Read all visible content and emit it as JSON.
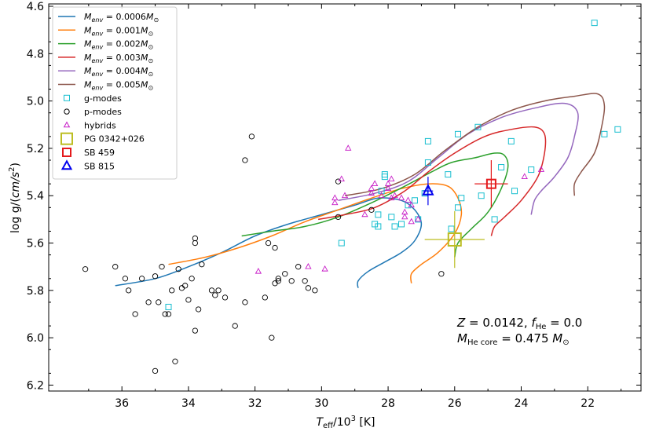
{
  "chart_data": {
    "type": "line+scatter",
    "xlabel": "T_eff/10^3 [K]",
    "ylabel": "log g/(cm/s^2)",
    "xlim": [
      38.2,
      20.4
    ],
    "ylim": [
      6.225,
      4.59
    ],
    "x_inverted": true,
    "y_inverted": true,
    "xticks": [
      36,
      34,
      32,
      30,
      28,
      26,
      24,
      22
    ],
    "yticks": [
      4.6,
      4.8,
      5.0,
      5.2,
      5.4,
      5.6,
      5.8,
      6.0,
      6.2
    ],
    "xtick_labels": [
      "36",
      "34",
      "32",
      "30",
      "28",
      "26",
      "24",
      "22"
    ],
    "ytick_labels": [
      "4.6",
      "4.8",
      "5.0",
      "5.2",
      "5.4",
      "5.6",
      "5.8",
      "6.0",
      "6.2"
    ],
    "legend_position": "top-left",
    "tracks": [
      {
        "label": "M_env = 0.0006 M_sun",
        "color": "#1f77b4",
        "points": [
          [
            36.2,
            5.78
          ],
          [
            35,
            5.75
          ],
          [
            34,
            5.7
          ],
          [
            33,
            5.64
          ],
          [
            32,
            5.57
          ],
          [
            31,
            5.52
          ],
          [
            30,
            5.48
          ],
          [
            29,
            5.44
          ],
          [
            28.3,
            5.41
          ],
          [
            27.6,
            5.42
          ],
          [
            27.2,
            5.46
          ],
          [
            27,
            5.52
          ],
          [
            27.2,
            5.59
          ],
          [
            27.6,
            5.64
          ],
          [
            28.1,
            5.68
          ],
          [
            28.6,
            5.72
          ],
          [
            28.9,
            5.76
          ],
          [
            28.9,
            5.79
          ]
        ]
      },
      {
        "label": "M_env = 0.001 M_sun",
        "color": "#ff7f0e",
        "points": [
          [
            34.6,
            5.69
          ],
          [
            33.5,
            5.66
          ],
          [
            32.5,
            5.62
          ],
          [
            31.5,
            5.57
          ],
          [
            30.5,
            5.51
          ],
          [
            29.5,
            5.46
          ],
          [
            28.5,
            5.41
          ],
          [
            27.6,
            5.37
          ],
          [
            26.8,
            5.35
          ],
          [
            26.2,
            5.36
          ],
          [
            25.9,
            5.41
          ],
          [
            25.8,
            5.48
          ],
          [
            26,
            5.56
          ],
          [
            26.5,
            5.64
          ],
          [
            27,
            5.69
          ],
          [
            27.3,
            5.73
          ],
          [
            27.3,
            5.77
          ]
        ]
      },
      {
        "label": "M_env = 0.002 M_sun",
        "color": "#2ca02c",
        "points": [
          [
            32.4,
            5.57
          ],
          [
            31.5,
            5.55
          ],
          [
            30.5,
            5.53
          ],
          [
            29.5,
            5.49
          ],
          [
            28.5,
            5.43
          ],
          [
            27.5,
            5.36
          ],
          [
            26.7,
            5.3
          ],
          [
            26.1,
            5.26
          ],
          [
            25.4,
            5.24
          ],
          [
            24.8,
            5.22
          ],
          [
            24.5,
            5.23
          ],
          [
            24.4,
            5.28
          ],
          [
            24.6,
            5.37
          ],
          [
            25,
            5.47
          ],
          [
            25.5,
            5.54
          ],
          [
            25.9,
            5.6
          ],
          [
            26,
            5.66
          ]
        ]
      },
      {
        "label": "M_env = 0.003 M_sun",
        "color": "#d62728",
        "points": [
          [
            30.1,
            5.5
          ],
          [
            29.3,
            5.48
          ],
          [
            28.4,
            5.45
          ],
          [
            27.5,
            5.38
          ],
          [
            26.8,
            5.3
          ],
          [
            26,
            5.22
          ],
          [
            25.1,
            5.15
          ],
          [
            24.3,
            5.12
          ],
          [
            23.6,
            5.11
          ],
          [
            23.3,
            5.14
          ],
          [
            23.3,
            5.22
          ],
          [
            23.5,
            5.32
          ],
          [
            24,
            5.42
          ],
          [
            24.5,
            5.49
          ],
          [
            24.8,
            5.53
          ],
          [
            24.9,
            5.57
          ]
        ]
      },
      {
        "label": "M_env = 0.004 M_sun",
        "color": "#9467bd",
        "points": [
          [
            29.5,
            5.42
          ],
          [
            28.4,
            5.39
          ],
          [
            27.4,
            5.34
          ],
          [
            26.5,
            5.24
          ],
          [
            25.6,
            5.14
          ],
          [
            24.6,
            5.07
          ],
          [
            23.6,
            5.03
          ],
          [
            22.7,
            5.01
          ],
          [
            22.3,
            5.05
          ],
          [
            22.4,
            5.15
          ],
          [
            22.6,
            5.24
          ],
          [
            23,
            5.32
          ],
          [
            23.4,
            5.38
          ],
          [
            23.6,
            5.42
          ],
          [
            23.7,
            5.48
          ]
        ]
      },
      {
        "label": "M_env = 0.005 M_sun",
        "color": "#8c564b",
        "points": [
          [
            29.3,
            5.4
          ],
          [
            28.2,
            5.37
          ],
          [
            27.2,
            5.31
          ],
          [
            26.3,
            5.21
          ],
          [
            25.3,
            5.11
          ],
          [
            24.3,
            5.04
          ],
          [
            23.3,
            5.0
          ],
          [
            22.4,
            4.98
          ],
          [
            21.7,
            4.97
          ],
          [
            21.5,
            5.02
          ],
          [
            21.6,
            5.12
          ],
          [
            21.8,
            5.22
          ],
          [
            22.2,
            5.3
          ],
          [
            22.4,
            5.35
          ],
          [
            22.4,
            5.4
          ]
        ]
      }
    ],
    "g_modes": {
      "label": "g-modes",
      "color": "#17becf",
      "points": [
        [
          21.8,
          4.67
        ],
        [
          21.5,
          5.14
        ],
        [
          21.1,
          5.12
        ],
        [
          24.3,
          5.17
        ],
        [
          25.3,
          5.11
        ],
        [
          25.9,
          5.14
        ],
        [
          26.8,
          5.17
        ],
        [
          26.8,
          5.26
        ],
        [
          26.2,
          5.31
        ],
        [
          24.6,
          5.28
        ],
        [
          23.7,
          5.29
        ],
        [
          24.2,
          5.38
        ],
        [
          24.8,
          5.5
        ],
        [
          25.2,
          5.4
        ],
        [
          25.9,
          5.45
        ],
        [
          25.8,
          5.41
        ],
        [
          26.1,
          5.54
        ],
        [
          26.9,
          5.39
        ],
        [
          27.2,
          5.42
        ],
        [
          27.4,
          5.44
        ],
        [
          27.1,
          5.5
        ],
        [
          27.6,
          5.52
        ],
        [
          27.8,
          5.53
        ],
        [
          27.9,
          5.49
        ],
        [
          28.1,
          5.32
        ],
        [
          28.1,
          5.31
        ],
        [
          28.2,
          5.38
        ],
        [
          28.3,
          5.48
        ],
        [
          28.4,
          5.52
        ],
        [
          28.3,
          5.53
        ],
        [
          29.4,
          5.6
        ],
        [
          34.6,
          5.87
        ]
      ]
    },
    "p_modes": {
      "label": "p-modes",
      "color": "#000000",
      "points": [
        [
          37.1,
          5.71
        ],
        [
          36.2,
          5.7
        ],
        [
          35.9,
          5.75
        ],
        [
          35.8,
          5.8
        ],
        [
          35.6,
          5.9
        ],
        [
          35.4,
          5.75
        ],
        [
          35.2,
          5.85
        ],
        [
          35.0,
          5.74
        ],
        [
          34.9,
          5.85
        ],
        [
          34.8,
          5.7
        ],
        [
          34.7,
          5.9
        ],
        [
          34.6,
          5.9
        ],
        [
          34.5,
          5.8
        ],
        [
          34.3,
          5.71
        ],
        [
          34.2,
          5.79
        ],
        [
          34.1,
          5.78
        ],
        [
          34.0,
          5.84
        ],
        [
          33.9,
          5.75
        ],
        [
          33.8,
          5.97
        ],
        [
          33.7,
          5.88
        ],
        [
          34.4,
          6.1
        ],
        [
          35.0,
          6.14
        ],
        [
          33.6,
          5.69
        ],
        [
          33.3,
          5.8
        ],
        [
          33.2,
          5.82
        ],
        [
          33.1,
          5.8
        ],
        [
          32.9,
          5.83
        ],
        [
          33.8,
          5.58
        ],
        [
          33.8,
          5.6
        ],
        [
          32.6,
          5.95
        ],
        [
          32.3,
          5.85
        ],
        [
          31.7,
          5.83
        ],
        [
          31.4,
          5.77
        ],
        [
          31.3,
          5.75
        ],
        [
          31.1,
          5.73
        ],
        [
          30.9,
          5.76
        ],
        [
          30.7,
          5.7
        ],
        [
          30.5,
          5.76
        ],
        [
          30.4,
          5.79
        ],
        [
          30.2,
          5.8
        ],
        [
          32.3,
          5.25
        ],
        [
          32.1,
          5.15
        ],
        [
          31.6,
          5.6
        ],
        [
          31.4,
          5.62
        ],
        [
          31.3,
          5.76
        ],
        [
          31.5,
          6.0
        ],
        [
          29.5,
          5.34
        ],
        [
          29.5,
          5.49
        ],
        [
          28.5,
          5.46
        ],
        [
          26.4,
          5.73
        ]
      ]
    },
    "hybrids": {
      "label": "hybrids",
      "color": "#c71bc7",
      "points": [
        [
          29.2,
          5.2
        ],
        [
          29.4,
          5.33
        ],
        [
          29.3,
          5.4
        ],
        [
          29.6,
          5.41
        ],
        [
          29.6,
          5.43
        ],
        [
          28.5,
          5.37
        ],
        [
          28.4,
          5.35
        ],
        [
          28.5,
          5.39
        ],
        [
          28.2,
          5.4
        ],
        [
          28,
          5.35
        ],
        [
          28,
          5.37
        ],
        [
          27.9,
          5.41
        ],
        [
          27.8,
          5.4
        ],
        [
          27.6,
          5.41
        ],
        [
          27.4,
          5.42
        ],
        [
          27.3,
          5.44
        ],
        [
          27.5,
          5.47
        ],
        [
          27.5,
          5.49
        ],
        [
          27.3,
          5.51
        ],
        [
          27.1,
          5.5
        ],
        [
          27.9,
          5.33
        ],
        [
          28.7,
          5.48
        ],
        [
          23.4,
          5.29
        ],
        [
          23.9,
          5.32
        ],
        [
          31.9,
          5.72
        ],
        [
          30.4,
          5.7
        ],
        [
          29.9,
          5.71
        ]
      ]
    },
    "stars": [
      {
        "label": "PG 0342+026",
        "color": "#bcbd22",
        "marker": "big-square",
        "x": 26.0,
        "y": 5.585,
        "xerr": 0.9,
        "yerr": 0.12
      },
      {
        "label": "SB 459",
        "color": "#e41a1c",
        "marker": "square",
        "x": 24.9,
        "y": 5.35,
        "xerr": 0.5,
        "yerr": 0.1
      },
      {
        "label": "SB 815",
        "color": "#0000ee",
        "marker": "triangle",
        "x": 26.8,
        "y": 5.38,
        "xerr": 0.15,
        "yerr": 0.06
      }
    ]
  },
  "legend": {
    "tracks": [
      {
        "label_prefix": "M",
        "label_sub": "env",
        "label_mid": " = 0.0006",
        "label_mass": "M",
        "label_sun": "⊙"
      },
      {
        "label_prefix": "M",
        "label_sub": "env",
        "label_mid": " = 0.001",
        "label_mass": "M",
        "label_sun": "⊙"
      },
      {
        "label_prefix": "M",
        "label_sub": "env",
        "label_mid": " = 0.002",
        "label_mass": "M",
        "label_sun": "⊙"
      },
      {
        "label_prefix": "M",
        "label_sub": "env",
        "label_mid": " = 0.003",
        "label_mass": "M",
        "label_sun": "⊙"
      },
      {
        "label_prefix": "M",
        "label_sub": "env",
        "label_mid": " = 0.004",
        "label_mass": "M",
        "label_sun": "⊙"
      },
      {
        "label_prefix": "M",
        "label_sub": "env",
        "label_mid": " = 0.005",
        "label_mass": "M",
        "label_sun": "⊙"
      }
    ],
    "markers": [
      "g-modes",
      "p-modes",
      "hybrids",
      "PG 0342+026",
      "SB 459",
      "SB 815"
    ]
  },
  "axis_titles": {
    "x_main": "T",
    "x_sub": "eff",
    "x_rest": "/10",
    "x_sup": "3",
    "x_unit": " [K]",
    "y_main": "log g/(",
    "y_unit": "cm/s",
    "y_sup": "2",
    "y_close": ")"
  },
  "annotation": {
    "line1_z": "Z",
    "line1_z_val": " = 0.0142, ",
    "line1_f": "f",
    "line1_f_sub": "He",
    "line1_f_val": " = 0.0",
    "line2_m": "M",
    "line2_m_sub": "He core",
    "line2_m_val": " = 0.475 ",
    "line2_unit": "M",
    "line2_sun": "⊙"
  }
}
